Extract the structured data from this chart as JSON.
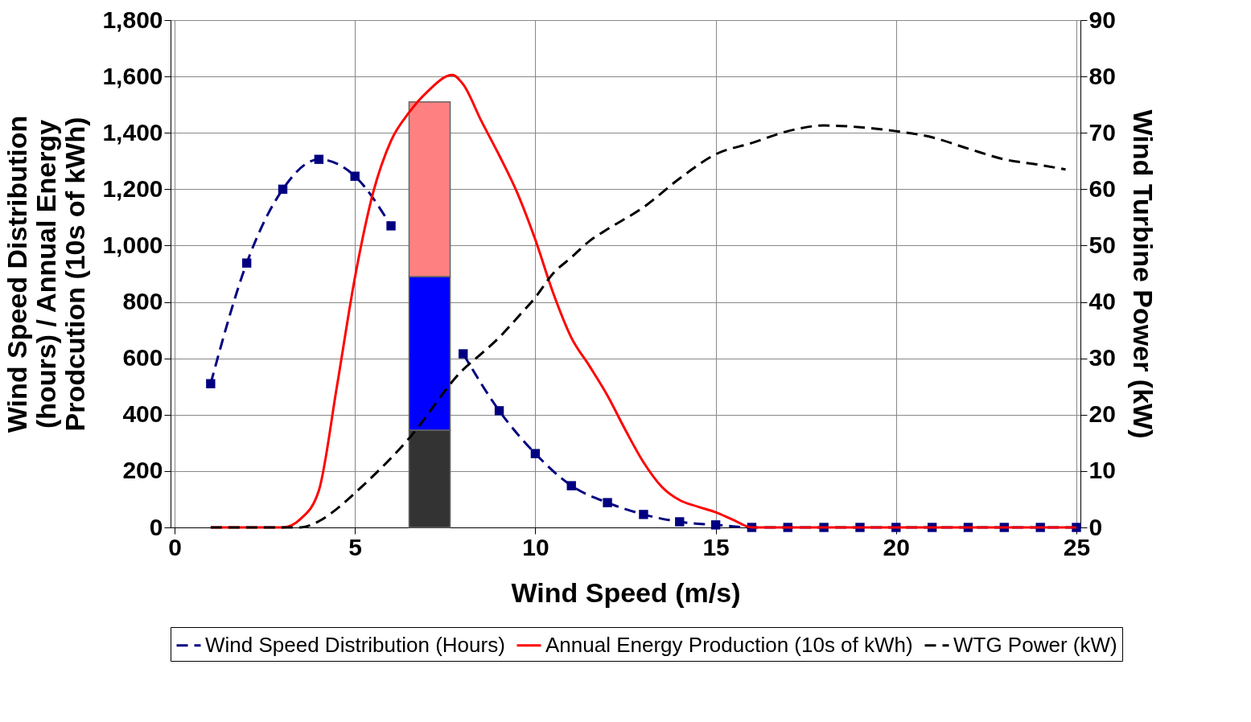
{
  "chart_data": {
    "type": "line",
    "xlabel": "Wind Speed (m/s)",
    "ylabel": "Wind Speed Distribution (hours) / Annual Energy Prodcution (10s of kWh)",
    "y2label": "Wind Turbine Power (kW)",
    "xlim": [
      0,
      25
    ],
    "xticks": [
      0,
      5,
      10,
      15,
      20,
      25
    ],
    "ylim": [
      0,
      1800
    ],
    "yticks": [
      0,
      200,
      400,
      600,
      800,
      {
        "value": 1000,
        "label": "1,000"
      },
      {
        "value": 1200,
        "label": "1,200"
      },
      {
        "value": 1400,
        "label": "1,400"
      },
      {
        "value": 1600,
        "label": "1,600"
      },
      {
        "value": 1800,
        "label": "1,800"
      }
    ],
    "y2lim": [
      0,
      90
    ],
    "y2ticks": [
      0,
      10,
      20,
      30,
      40,
      50,
      60,
      70,
      80,
      90
    ],
    "grid": true,
    "legend": "bottom",
    "series": [
      {
        "type": "bar",
        "color": "#333333",
        "x": [
          7.07
        ],
        "base": [
          0
        ],
        "values": [
          345
        ]
      },
      {
        "type": "bar",
        "color": "#0000ff",
        "x": [
          7.07
        ],
        "base": [
          345
        ],
        "values": [
          545
        ]
      },
      {
        "type": "bar",
        "color": "#ff8080",
        "x": [
          7.07
        ],
        "base": [
          890
        ],
        "values": [
          620
        ]
      },
      {
        "name": "Wind Speed Distribution (Hours)",
        "color": "#000080",
        "line_style": "dashed",
        "marker": "square",
        "x": [
          1,
          2,
          3,
          4,
          5,
          6,
          7,
          8,
          9,
          10,
          11,
          12,
          13,
          14,
          15,
          16,
          17,
          18,
          19,
          20,
          21,
          22,
          23,
          24,
          25
        ],
        "values": [
          510,
          938,
          1200,
          1306,
          1246,
          1070,
          null,
          616,
          414,
          262,
          148,
          88,
          46,
          20,
          9,
          0,
          0,
          0,
          0,
          0,
          0,
          0,
          0,
          0,
          0
        ]
      },
      {
        "name": "Annual Energy Production (10s of kWh)",
        "color": "#ff0000",
        "line_style": "solid",
        "marker": "none",
        "x": [
          1,
          2,
          3,
          3.5,
          4,
          4.5,
          5,
          5.5,
          6,
          6.5,
          7,
          7.7,
          8,
          8.5,
          9,
          9.5,
          10,
          10.5,
          11,
          11.5,
          12,
          12.5,
          13,
          13.5,
          14,
          14.5,
          15,
          15.5,
          16,
          17,
          18,
          19,
          20,
          21,
          22,
          23,
          24,
          25
        ],
        "values": [
          0,
          0,
          0,
          31,
          131,
          500,
          887,
          1186,
          1372,
          1472,
          1545,
          1605,
          1572,
          1443,
          1320,
          1187,
          1021,
          830,
          673,
          573,
          468,
          345,
          231,
          145,
          97,
          74,
          54,
          26,
          0,
          0,
          0,
          0,
          0,
          0,
          0,
          0,
          0,
          0
        ]
      },
      {
        "name": "WTG Power (kW)",
        "color": "#000000",
        "line_style": "dashed",
        "marker": "none",
        "axis": "y2",
        "x": [
          1,
          2,
          3,
          3.5,
          4,
          4.5,
          5,
          5.5,
          6,
          6.5,
          8,
          8.5,
          9,
          9.5,
          10,
          10.5,
          11,
          11.5,
          12,
          13,
          14,
          15,
          16,
          17,
          18,
          19,
          20,
          21,
          22,
          23,
          24,
          24.7
        ],
        "values": [
          0,
          0,
          0,
          0,
          1.1,
          3.3,
          6.1,
          9.1,
          12.3,
          15.8,
          28.0,
          30.8,
          33.7,
          37.2,
          40.8,
          45.1,
          47.9,
          50.8,
          52.9,
          56.8,
          61.9,
          66.2,
          68.2,
          70.3,
          71.3,
          71.0,
          70.3,
          69.2,
          67.2,
          65.3,
          64.3,
          63.5
        ]
      }
    ]
  }
}
